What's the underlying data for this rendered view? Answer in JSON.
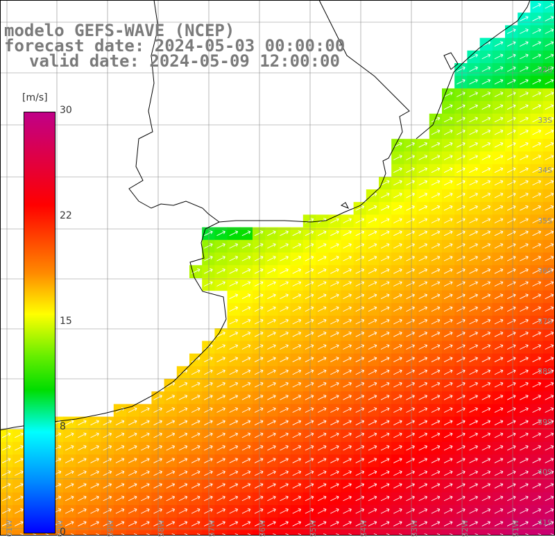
{
  "title": {
    "line1": "modelo GEFS-WAVE (NCEP)",
    "line2": "forecast date: 2024-05-03 00:00:00",
    "line3": "valid date: 2024-05-09 12:00:00"
  },
  "colorbar": {
    "unit": "[m/s]",
    "ticks": [
      "30",
      "22",
      "15",
      "8",
      "0"
    ],
    "colors": [
      "#0000ff",
      "#0088ff",
      "#00ffff",
      "#00dd00",
      "#66ee00",
      "#ffff00",
      "#ff8800",
      "#ff0000",
      "#c00088"
    ]
  },
  "lat_labels": [
    "32S",
    "33S",
    "34S",
    "35S",
    "36S",
    "37S",
    "38S",
    "39S",
    "40S",
    "41S"
  ],
  "lon_labels": [
    "61W",
    "60W",
    "59W",
    "58W",
    "57W",
    "56W",
    "55W",
    "54W",
    "53W",
    "52W",
    "51W"
  ],
  "map": {
    "region": "Rio de la Plata / Uruguay coast",
    "field": "wind speed",
    "arrows": "white arrows pointing north-east"
  }
}
